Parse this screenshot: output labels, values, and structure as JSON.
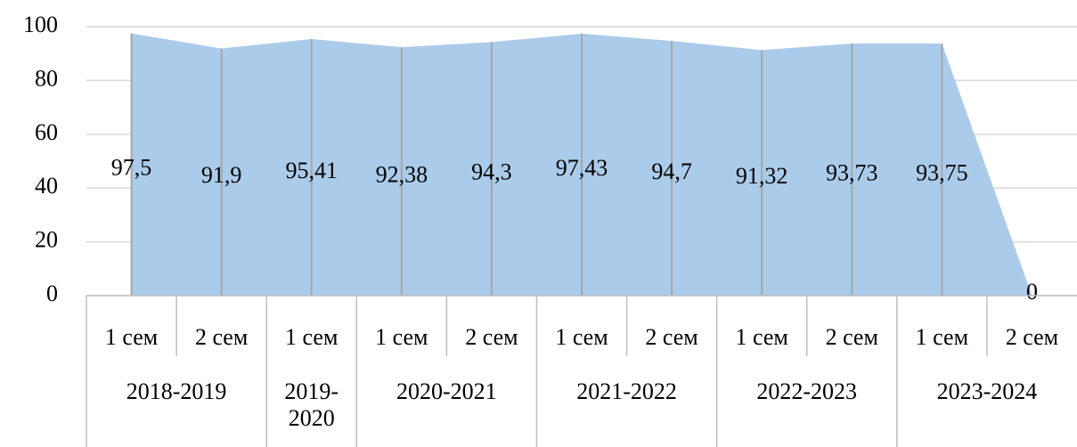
{
  "chart_data": {
    "type": "area",
    "color": "#abcbea",
    "grid": true,
    "groups": [
      {
        "label": "2018-2019",
        "categories": [
          "1 сем",
          "2 сем"
        ]
      },
      {
        "label": "2019-2020",
        "categories": [
          "1 сем"
        ]
      },
      {
        "label": "2020-2021",
        "categories": [
          "1 сем",
          "2 сем"
        ]
      },
      {
        "label": "2021-2022",
        "categories": [
          "1 сем",
          "2 сем"
        ]
      },
      {
        "label": "2022-2023",
        "categories": [
          "1 сем",
          "2 сем"
        ]
      },
      {
        "label": "2023-2024",
        "categories": [
          "1 сем",
          "2 сем"
        ]
      }
    ],
    "values": [
      97.5,
      91.9,
      95.41,
      92.38,
      94.3,
      97.43,
      94.7,
      91.32,
      93.73,
      93.75,
      0
    ],
    "value_labels": [
      "97,5",
      "91,9",
      "95,41",
      "92,38",
      "94,3",
      "97,43",
      "94,7",
      "91,32",
      "93,73",
      "93,75",
      "0"
    ],
    "ylim": [
      0,
      100
    ],
    "yticks": [
      0,
      20,
      40,
      60,
      80,
      100
    ]
  }
}
